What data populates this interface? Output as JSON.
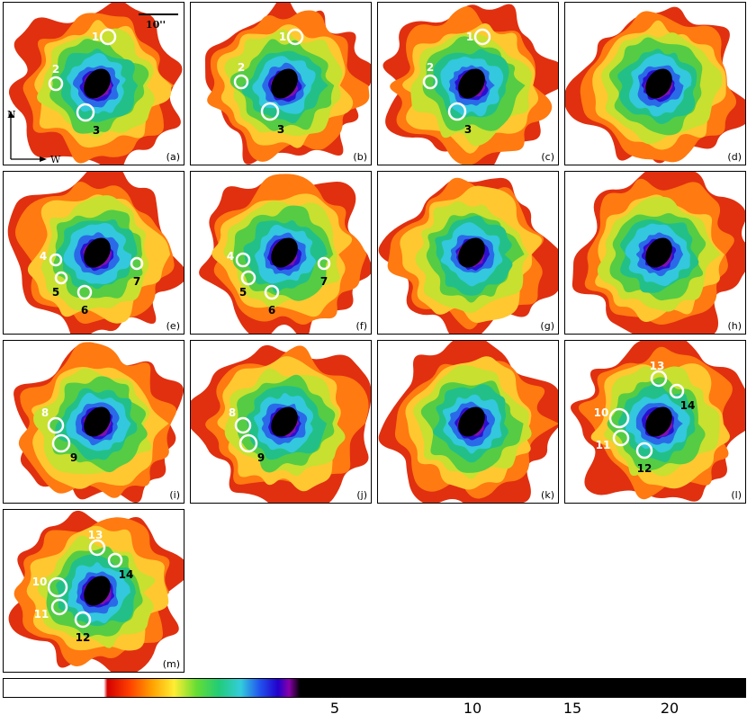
{
  "colorbar": {
    "ticks": [
      {
        "value": 5,
        "label": "5"
      },
      {
        "value": 10,
        "label": "10"
      },
      {
        "value": 15,
        "label": "15"
      },
      {
        "value": 20,
        "label": "20"
      }
    ]
  },
  "scale_bar_label": "10''",
  "compass": {
    "north": "N",
    "west": "W"
  },
  "panels": [
    {
      "label": "(a)",
      "sources": [
        {
          "id": "1",
          "fill": true
        },
        {
          "id": "2",
          "fill": true
        },
        {
          "id": "3",
          "fill": true
        }
      ]
    },
    {
      "label": "(b)",
      "sources": [
        {
          "id": "1"
        },
        {
          "id": "2"
        },
        {
          "id": "3"
        }
      ]
    },
    {
      "label": "(c)",
      "sources": [
        {
          "id": "1"
        },
        {
          "id": "2"
        },
        {
          "id": "3"
        }
      ]
    },
    {
      "label": "(d)",
      "sources": []
    },
    {
      "label": "(e)",
      "sources": [
        {
          "id": "4"
        },
        {
          "id": "5"
        },
        {
          "id": "6"
        },
        {
          "id": "7"
        }
      ]
    },
    {
      "label": "(f)",
      "sources": [
        {
          "id": "4"
        },
        {
          "id": "5"
        },
        {
          "id": "6"
        },
        {
          "id": "7"
        }
      ]
    },
    {
      "label": "(g)",
      "sources": []
    },
    {
      "label": "(h)",
      "sources": []
    },
    {
      "label": "(i)",
      "sources": [
        {
          "id": "8"
        },
        {
          "id": "9"
        }
      ]
    },
    {
      "label": "(j)",
      "sources": [
        {
          "id": "8"
        },
        {
          "id": "9"
        }
      ]
    },
    {
      "label": "(k)",
      "sources": []
    },
    {
      "label": "(l)",
      "sources": [
        {
          "id": "10"
        },
        {
          "id": "11"
        },
        {
          "id": "12"
        },
        {
          "id": "13"
        },
        {
          "id": "14"
        }
      ]
    },
    {
      "label": "(m)",
      "sources": [
        {
          "id": "10"
        },
        {
          "id": "11"
        },
        {
          "id": "12"
        },
        {
          "id": "13"
        },
        {
          "id": "14"
        }
      ]
    }
  ]
}
